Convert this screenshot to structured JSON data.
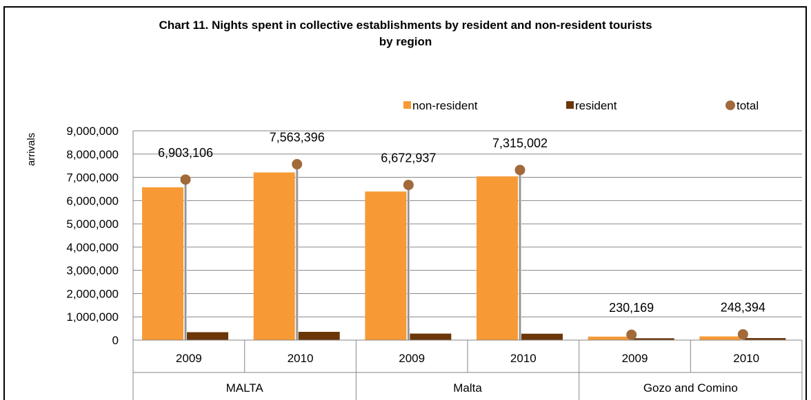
{
  "chart_data": {
    "type": "bar",
    "title_line1": "Chart 11.  Nights spent in collective establishments by resident and non-resident tourists",
    "title_line2": "by region",
    "ylabel": "arrivals",
    "ylim": [
      0,
      9000000
    ],
    "yticks": [
      "0",
      "1,000,000",
      "2,000,000",
      "3,000,000",
      "4,000,000",
      "5,000,000",
      "6,000,000",
      "7,000,000",
      "8,000,000",
      "9,000,000"
    ],
    "ytick_values": [
      0,
      1000000,
      2000000,
      3000000,
      4000000,
      5000000,
      6000000,
      7000000,
      8000000,
      9000000
    ],
    "grid": true,
    "legend_position": "top-right",
    "categories": [
      "2009",
      "2010",
      "2009",
      "2010",
      "2009",
      "2010"
    ],
    "groups": [
      {
        "label": "MALTA",
        "span": 2
      },
      {
        "label": "Malta",
        "span": 2
      },
      {
        "label": "Gozo and Comino",
        "span": 2
      }
    ],
    "series": [
      {
        "name": "non-resident",
        "type": "bar",
        "color": "#f79a36",
        "values": [
          6570000,
          7210000,
          6390000,
          7040000,
          150000,
          160000
        ]
      },
      {
        "name": "resident",
        "type": "bar",
        "color": "#6b3608",
        "values": [
          340000,
          355000,
          280000,
          275000,
          80000,
          88000
        ]
      },
      {
        "name": "total",
        "type": "marker",
        "color": "#a2693a",
        "values": [
          6903106,
          7563396,
          6672937,
          7315002,
          230169,
          248394
        ]
      }
    ],
    "data_labels": [
      "6,903,106",
      "7,563,396",
      "6,672,937",
      "7,315,002",
      "230,169",
      "248,394"
    ]
  }
}
